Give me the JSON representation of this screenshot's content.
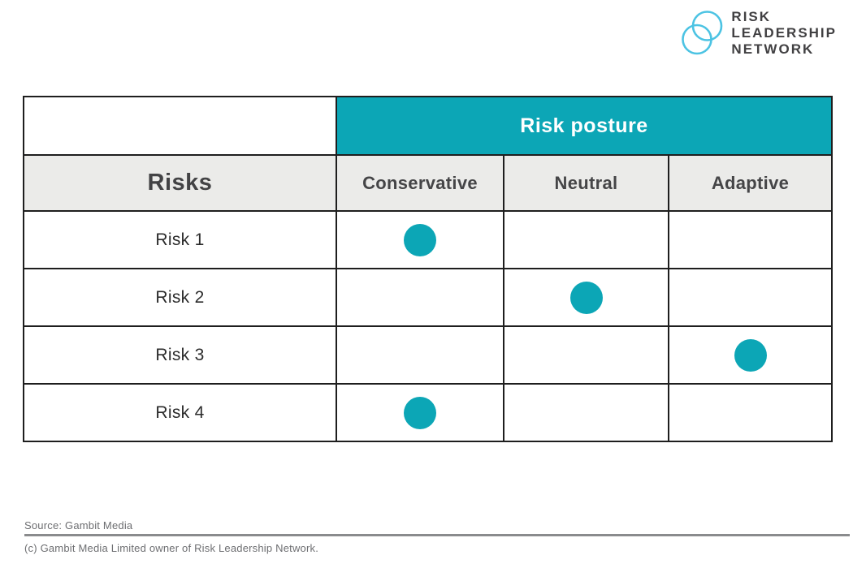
{
  "logo": {
    "line1": "RISK",
    "line2": "LEADERSHIP",
    "line3": "NETWORK",
    "circle_color": "#4cc3e3",
    "text_color": "#414042"
  },
  "table": {
    "risk_posture_header": "Risk posture",
    "risks_header": "Risks",
    "columns": [
      "Conservative",
      "Neutral",
      "Adaptive"
    ],
    "rows": [
      {
        "label": "Risk 1",
        "posture": "Conservative"
      },
      {
        "label": "Risk 2",
        "posture": "Neutral"
      },
      {
        "label": "Risk 3",
        "posture": "Adaptive"
      },
      {
        "label": "Risk 4",
        "posture": "Conservative"
      }
    ],
    "accent_color": "#0ca6b6",
    "subheader_bg": "#ebebe9",
    "border_color": "#1e1e1e",
    "dot_color": "#0ca6b6"
  },
  "footer": {
    "source": "Source: Gambit Media",
    "copyright": "(c) Gambit Media Limited owner of Risk Leadership Network."
  },
  "chart_data": {
    "type": "table",
    "title": "Risk posture",
    "row_header": "Risks",
    "columns": [
      "Conservative",
      "Neutral",
      "Adaptive"
    ],
    "rows": [
      "Risk 1",
      "Risk 2",
      "Risk 3",
      "Risk 4"
    ],
    "marks": [
      {
        "row": "Risk 1",
        "column": "Conservative"
      },
      {
        "row": "Risk 2",
        "column": "Neutral"
      },
      {
        "row": "Risk 3",
        "column": "Adaptive"
      },
      {
        "row": "Risk 4",
        "column": "Conservative"
      }
    ],
    "mark_style": "filled-circle",
    "mark_color": "#0ca6b6",
    "legend": "none",
    "grid": "full black cell borders"
  }
}
